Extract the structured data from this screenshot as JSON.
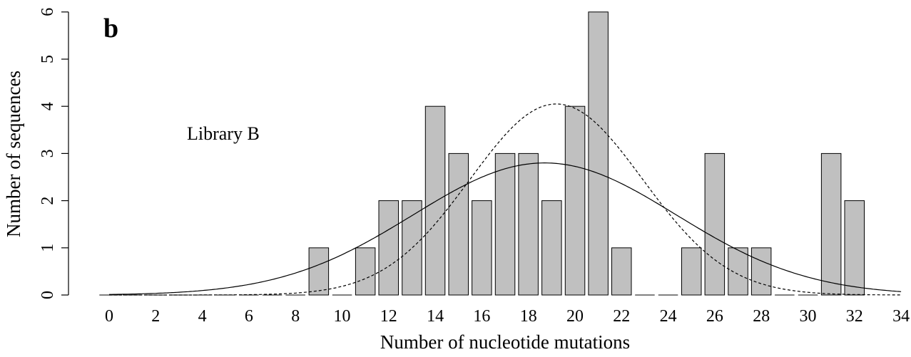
{
  "chart_data": {
    "type": "bar",
    "panel_label": "b",
    "annotation": "Library B",
    "xlabel": "Number of nucleotide mutations",
    "ylabel": "Number of sequences",
    "xlim": [
      0,
      34
    ],
    "ylim": [
      0,
      6
    ],
    "x_ticks": [
      "0",
      "2",
      "4",
      "6",
      "8",
      "10",
      "12",
      "14",
      "16",
      "18",
      "20",
      "22",
      "24",
      "26",
      "28",
      "30",
      "32",
      "34"
    ],
    "y_ticks": [
      "0",
      "1",
      "2",
      "3",
      "4",
      "5",
      "6"
    ],
    "x": [
      0,
      1,
      2,
      3,
      4,
      5,
      6,
      7,
      8,
      9,
      10,
      11,
      12,
      13,
      14,
      15,
      16,
      17,
      18,
      19,
      20,
      21,
      22,
      23,
      24,
      25,
      26,
      27,
      28,
      29,
      30,
      31,
      32
    ],
    "values": [
      0,
      0,
      0,
      0,
      0,
      0,
      0,
      0,
      0,
      1,
      0,
      1,
      2,
      2,
      4,
      3,
      2,
      3,
      3,
      2,
      4,
      6,
      1,
      0,
      0,
      1,
      3,
      1,
      1,
      0,
      0,
      3,
      2
    ],
    "bar_color": "#c0c0c0",
    "curves": [
      {
        "style": "solid",
        "type": "normal_fit",
        "mean": 18.7,
        "sd": 5.65,
        "peak": 2.8
      },
      {
        "style": "dashed",
        "type": "normal_fit",
        "mean": 19.2,
        "sd": 3.7,
        "peak": 4.05
      }
    ],
    "grid": false,
    "legend": "none"
  }
}
